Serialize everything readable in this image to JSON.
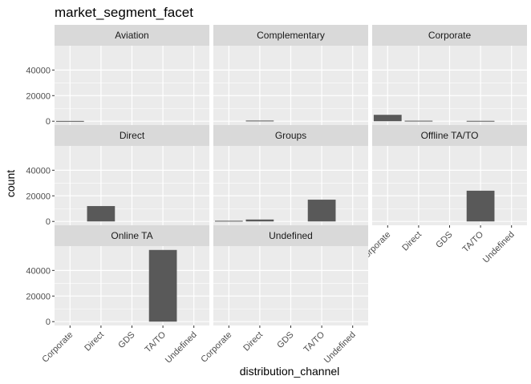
{
  "chart_data": {
    "type": "bar",
    "title": "market_segment_facet",
    "xlabel": "distribution_channel",
    "ylabel": "count",
    "categories": [
      "Corporate",
      "Direct",
      "GDS",
      "TA/TO",
      "Undefined"
    ],
    "yticks": [
      0,
      20000,
      40000
    ],
    "ytick_labels": [
      "0",
      "20000",
      "40000"
    ],
    "ylim": [
      -3000,
      59000
    ],
    "grid": true,
    "colors": {
      "bar": "#595959",
      "panel": "#ebebeb",
      "strip": "#d9d9d9",
      "grid": "#ffffff"
    },
    "facets": [
      {
        "label": "Aviation",
        "values": [
          230,
          0,
          0,
          0,
          0
        ]
      },
      {
        "label": "Complementary",
        "values": [
          0,
          500,
          0,
          0,
          0
        ]
      },
      {
        "label": "Corporate",
        "values": [
          5000,
          400,
          0,
          300,
          0
        ]
      },
      {
        "label": "Direct",
        "values": [
          0,
          12000,
          0,
          0,
          0
        ]
      },
      {
        "label": "Groups",
        "values": [
          500,
          1500,
          0,
          17000,
          0
        ]
      },
      {
        "label": "Offline TA/TO",
        "values": [
          0,
          0,
          0,
          24000,
          0
        ]
      },
      {
        "label": "Online TA",
        "values": [
          0,
          0,
          0,
          56000,
          0
        ]
      },
      {
        "label": "Undefined",
        "values": [
          0,
          0,
          0,
          0,
          0
        ]
      }
    ]
  }
}
